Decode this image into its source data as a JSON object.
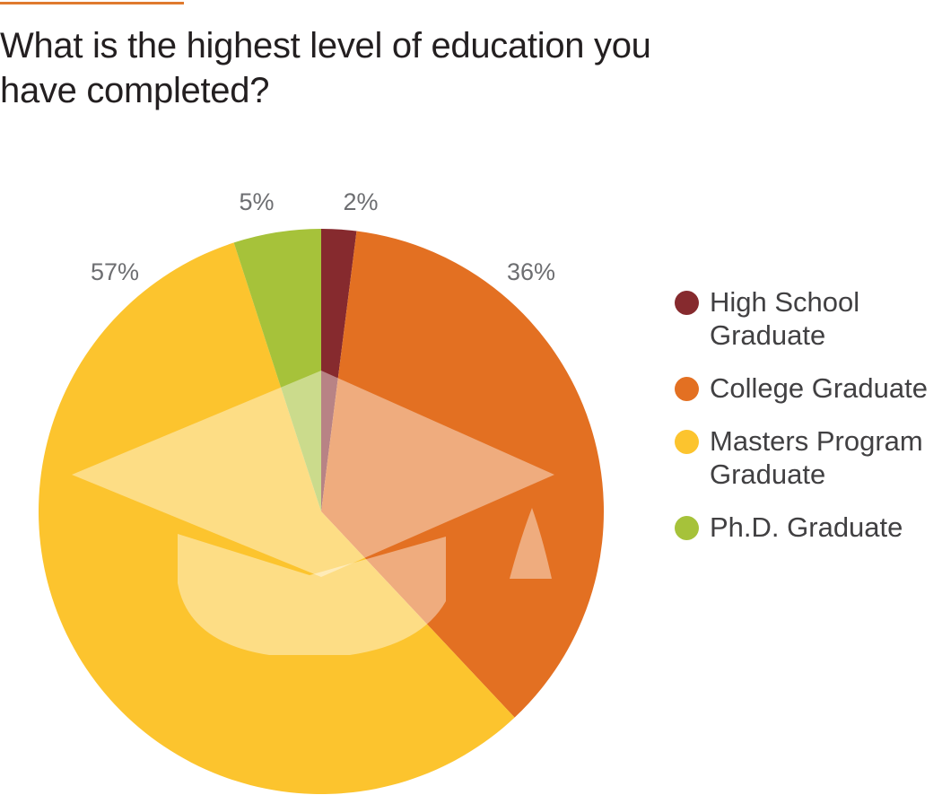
{
  "title": "What is the highest level of education you have completed?",
  "colors": {
    "accent": "#e07a2e",
    "high_school": "#862a2e",
    "college": "#e37022",
    "masters": "#fcc42e",
    "phd": "#a6c23a"
  },
  "chart_data": {
    "type": "pie",
    "title": "What is the highest level of education you have completed?",
    "slices": [
      {
        "name": "High School Graduate",
        "legend_lines": [
          "High School",
          "Graduate"
        ],
        "value": 2,
        "label": "2%",
        "color": "#862a2e"
      },
      {
        "name": "College Graduate",
        "legend_lines": [
          "College Graduate"
        ],
        "value": 36,
        "label": "36%",
        "color": "#e37022"
      },
      {
        "name": "Masters Program Graduate",
        "legend_lines": [
          "Masters Program",
          "Graduate"
        ],
        "value": 57,
        "label": "57%",
        "color": "#fcc42e"
      },
      {
        "name": "Ph.D. Graduate",
        "legend_lines": [
          "Ph.D. Graduate"
        ],
        "value": 5,
        "label": "5%",
        "color": "#a6c23a"
      }
    ],
    "legend_position": "right",
    "start": "top, clockwise",
    "overlay_icon": "graduation-cap-icon"
  }
}
